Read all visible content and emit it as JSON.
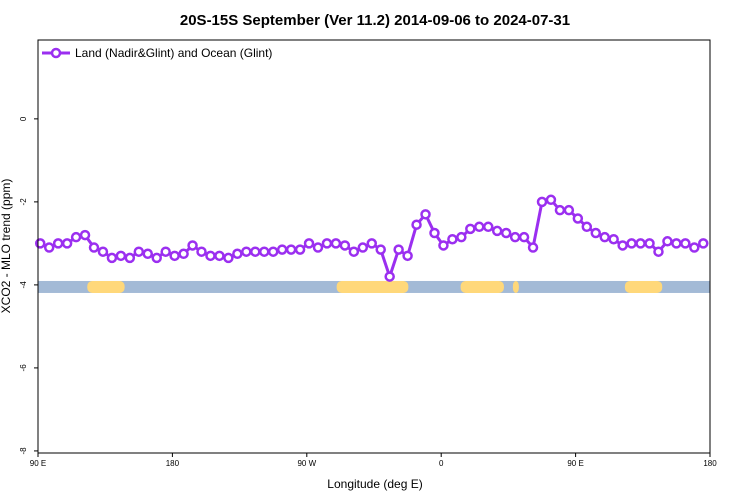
{
  "chart_data": {
    "type": "line",
    "title": "20S-15S September (Ver 11.2)   2014-09-06 to 2024-07-31",
    "xlabel": "Longitude (deg E)",
    "ylabel": "XCO2 - MLO trend (ppm)",
    "ylim": [
      -8.05,
      1.9
    ],
    "y_ticks": [
      0,
      -2,
      -4,
      -6,
      -8
    ],
    "y_tick_labels": [
      "0",
      "-2",
      "-4",
      "-6",
      "-8"
    ],
    "x_ticks": [
      0,
      90,
      180,
      270,
      360,
      450
    ],
    "x_tick_labels": [
      "90 E",
      "180",
      "90 W",
      "0",
      "90 E",
      "180"
    ],
    "xlim": [
      0,
      450
    ],
    "grid": false,
    "legend_position": "top-left",
    "colors": {
      "series": "#9b2ff0",
      "ocean": "#a3bad6",
      "land": "#ffd87a"
    },
    "series": [
      {
        "name": "Land (Nadir&Glint) and Ocean (Glint)",
        "x": [
          1.5,
          7.5,
          13.5,
          19.5,
          25.5,
          31.5,
          37.5,
          43.5,
          49.5,
          55.5,
          61.5,
          67.5,
          73.5,
          79.5,
          85.5,
          91.5,
          97.5,
          103.5,
          109.5,
          115.5,
          121.5,
          127.5,
          133.5,
          139.5,
          145.5,
          151.5,
          157.5,
          163.5,
          169.5,
          175.5,
          181.5,
          187.5,
          193.5,
          199.5,
          205.5,
          211.5,
          217.5,
          223.5,
          229.5,
          235.5,
          241.5,
          247.5,
          253.5,
          259.5,
          265.5,
          271.5,
          277.5,
          283.5,
          289.5,
          295.5,
          301.5,
          307.5,
          313.5,
          319.5,
          325.5,
          331.5,
          337.5,
          343.5,
          349.5,
          355.5,
          361.5,
          367.5,
          373.5,
          379.5,
          385.5,
          391.5,
          397.5,
          403.5,
          409.5,
          415.5,
          421.5,
          427.5,
          433.5,
          439.5,
          445.5
        ],
        "y": [
          -3.0,
          -3.1,
          -3.0,
          -3.0,
          -2.85,
          -2.8,
          -3.1,
          -3.2,
          -3.35,
          -3.3,
          -3.35,
          -3.2,
          -3.25,
          -3.35,
          -3.2,
          -3.3,
          -3.25,
          -3.05,
          -3.2,
          -3.3,
          -3.3,
          -3.35,
          -3.25,
          -3.2,
          -3.2,
          -3.2,
          -3.2,
          -3.15,
          -3.15,
          -3.15,
          -3.0,
          -3.1,
          -3.0,
          -3.0,
          -3.05,
          -3.2,
          -3.1,
          -3.0,
          -3.15,
          -3.8,
          -3.15,
          -3.3,
          -2.55,
          -2.3,
          -2.75,
          -3.05,
          -2.9,
          -2.85,
          -2.65,
          -2.6,
          -2.6,
          -2.7,
          -2.75,
          -2.85,
          -2.85,
          -3.1,
          -2.0,
          -1.95,
          -2.2,
          -2.2,
          -2.4,
          -2.6,
          -2.75,
          -2.85,
          -2.9,
          -3.05,
          -3.0,
          -3.0,
          -3.0,
          -3.2,
          -2.95,
          -3.0,
          -3.0,
          -3.1,
          -3.0
        ]
      }
    ],
    "surface_strip": {
      "y": -4.05,
      "land_x_ranges": [
        [
          33,
          58
        ],
        [
          200,
          248
        ],
        [
          283,
          312
        ],
        [
          318,
          322
        ],
        [
          393,
          418
        ]
      ]
    }
  }
}
